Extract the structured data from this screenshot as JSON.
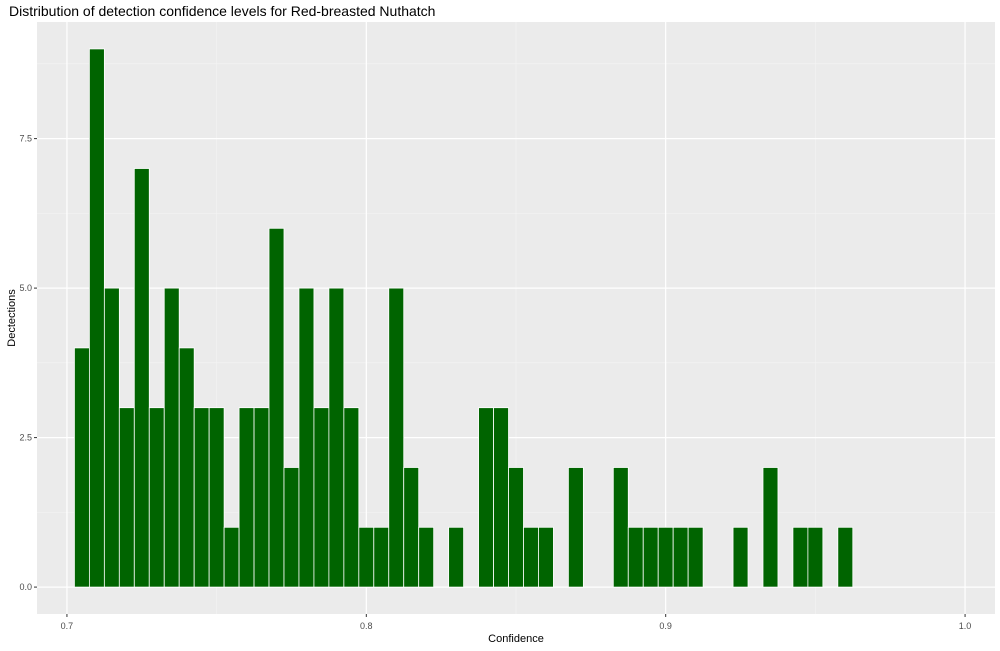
{
  "chart_data": {
    "type": "bar",
    "title": "Distribution of detection confidence levels for Red-breasted Nuthatch",
    "xlabel": "Confidence",
    "ylabel": "Dectections",
    "bin_width": 0.005,
    "x": [
      0.705,
      0.71,
      0.715,
      0.72,
      0.725,
      0.73,
      0.735,
      0.74,
      0.745,
      0.75,
      0.755,
      0.76,
      0.765,
      0.77,
      0.775,
      0.78,
      0.785,
      0.79,
      0.795,
      0.8,
      0.805,
      0.81,
      0.815,
      0.82,
      0.83,
      0.84,
      0.845,
      0.85,
      0.855,
      0.86,
      0.87,
      0.885,
      0.89,
      0.895,
      0.9,
      0.905,
      0.91,
      0.925,
      0.935,
      0.945,
      0.95,
      0.96
    ],
    "values": [
      4,
      9,
      5,
      3,
      7,
      3,
      5,
      4,
      3,
      3,
      1,
      3,
      3,
      6,
      2,
      5,
      3,
      5,
      3,
      1,
      1,
      5,
      2,
      1,
      1,
      3,
      3,
      2,
      1,
      1,
      2,
      2,
      1,
      1,
      1,
      1,
      1,
      1,
      2,
      1,
      1,
      1
    ],
    "xlim": [
      0.69,
      1.01
    ],
    "ylim": [
      -0.45,
      9.45
    ],
    "xticks": [
      0.7,
      0.8,
      0.9,
      1.0
    ],
    "xtick_labels": [
      "0.7",
      "0.8",
      "0.9",
      "1.0"
    ],
    "yticks": [
      0,
      2.5,
      5,
      7.5
    ],
    "ytick_labels": [
      "0.0",
      "2.5",
      "5.0",
      "7.5"
    ],
    "grid": true,
    "colors": {
      "bar_fill": "#006400",
      "bar_outline": "#ffffff",
      "panel_background": "#ebebeb",
      "grid_major": "#ffffff",
      "grid_minor": "#f4f4f4"
    }
  }
}
